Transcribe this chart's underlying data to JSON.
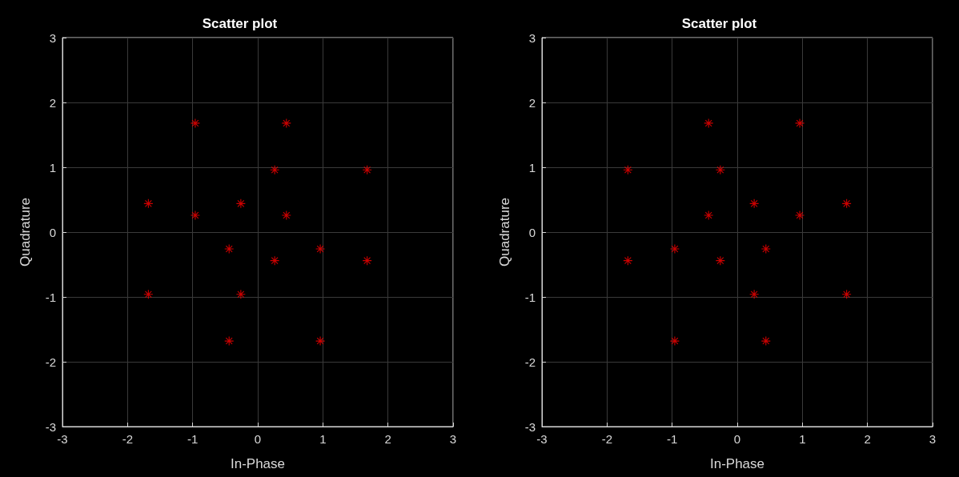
{
  "chart_data": [
    {
      "type": "scatter",
      "title": "Scatter plot",
      "xlabel": "In-Phase",
      "ylabel": "Quadrature",
      "marker": "star",
      "grid": true,
      "x": [
        -0.96,
        0.44,
        0.26,
        1.68,
        -1.68,
        -0.96,
        -0.26,
        0.44,
        -0.44,
        0.96,
        0.26,
        1.68,
        -1.68,
        -0.26,
        -0.44,
        0.96
      ],
      "series": [
        {
          "color": "#ff0000",
          "values": [
            1.68,
            1.68,
            0.96,
            0.96,
            0.44,
            0.26,
            0.44,
            0.26,
            -0.26,
            -0.26,
            -0.44,
            -0.44,
            -0.96,
            -0.96,
            -1.68,
            -1.68
          ]
        }
      ],
      "xlim": [
        -3,
        3
      ],
      "xticks": [
        -3,
        -2,
        -1,
        0,
        1,
        2,
        3
      ],
      "ylim": [
        -3,
        3
      ],
      "yticks": [
        -3,
        -2,
        -1,
        0,
        1,
        2,
        3
      ]
    },
    {
      "type": "scatter",
      "title": "Scatter plot",
      "xlabel": "In-Phase",
      "ylabel": "Quadrature",
      "marker": "star",
      "grid": true,
      "x": [
        -0.44,
        0.96,
        -1.68,
        -0.26,
        0.26,
        1.68,
        -0.44,
        0.96,
        -0.96,
        0.44,
        -1.68,
        -0.26,
        0.26,
        1.68,
        -0.96,
        0.44
      ],
      "series": [
        {
          "color": "#ff0000",
          "values": [
            1.68,
            1.68,
            0.96,
            0.96,
            0.44,
            0.44,
            0.26,
            0.26,
            -0.26,
            -0.26,
            -0.44,
            -0.44,
            -0.96,
            -0.96,
            -1.68,
            -1.68
          ]
        }
      ],
      "xlim": [
        -3,
        3
      ],
      "xticks": [
        -3,
        -2,
        -1,
        0,
        1,
        2,
        3
      ],
      "ylim": [
        -3,
        3
      ],
      "yticks": [
        -3,
        -2,
        -1,
        0,
        1,
        2,
        3
      ]
    }
  ]
}
